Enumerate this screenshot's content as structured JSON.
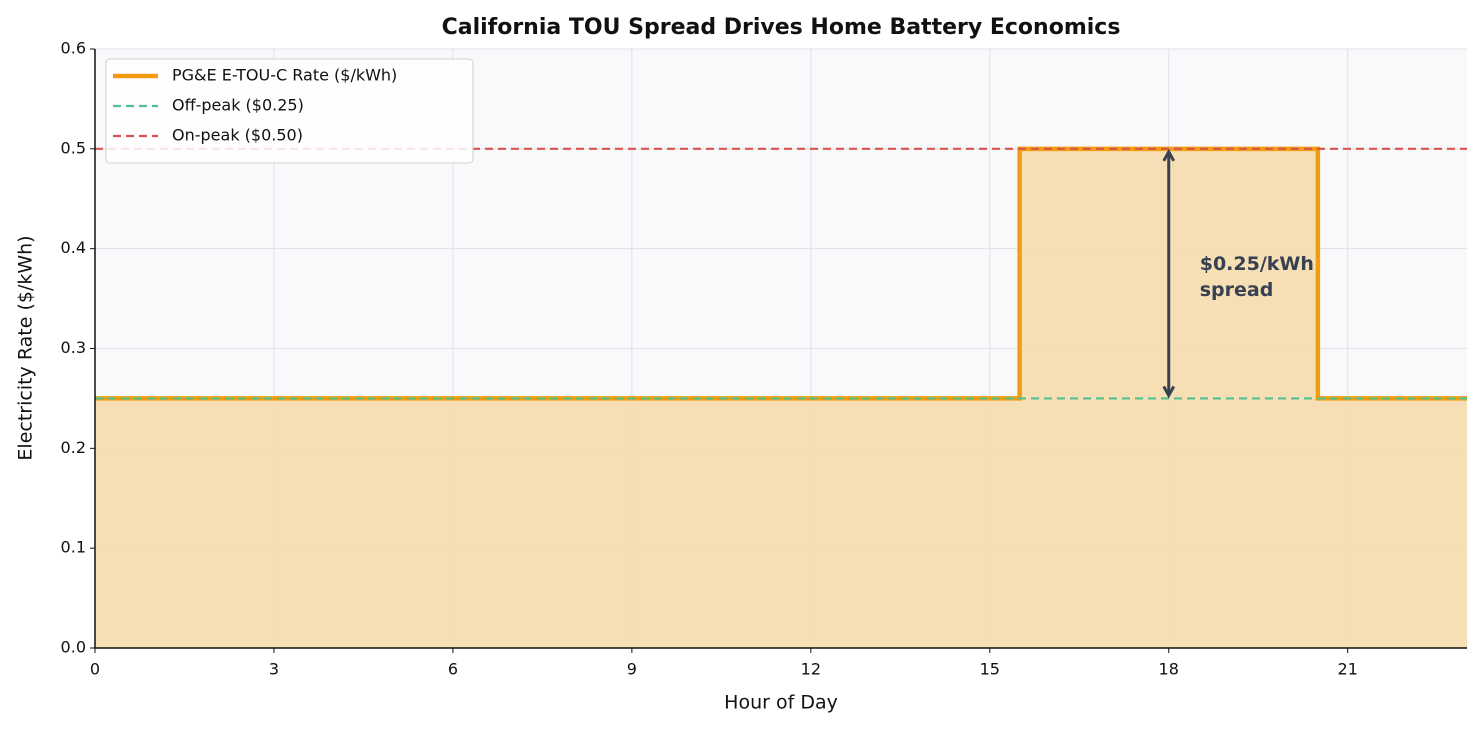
{
  "chart_data": {
    "type": "step",
    "title": "California TOU Spread Drives Home Battery Economics",
    "xlabel": "Hour of Day",
    "ylabel": "Electricity Rate ($/kWh)",
    "xlim": [
      0,
      23
    ],
    "ylim": [
      0,
      0.6
    ],
    "xticks": [
      0,
      3,
      6,
      9,
      12,
      15,
      18,
      21
    ],
    "yticks": [
      {
        "value": 0,
        "label": "0.0"
      },
      0.1,
      0.2,
      0.3,
      0.4,
      0.5,
      0.6
    ],
    "grid": true,
    "legend": "upper left",
    "series": [
      {
        "name": "PG&E E-TOU-C Rate ($/kWh)",
        "color": "#f39c12",
        "fill": "#f5ddb0",
        "x": [
          0,
          15.5,
          15.5,
          20.5,
          20.5,
          23
        ],
        "values": [
          0.25,
          0.25,
          0.5,
          0.5,
          0.25,
          0.25
        ]
      }
    ],
    "hlines": [
      {
        "name": "Off-peak ($0.25)",
        "color": "#52c08f",
        "value": 0.25
      },
      {
        "name": "On-peak ($0.50)",
        "color": "#d9534f",
        "value": 0.5
      }
    ],
    "annotation": {
      "lines": [
        "$0.25/kWh",
        "spread"
      ],
      "x": 18,
      "y_from": 0.25,
      "y_to": 0.5,
      "color": "#374151"
    }
  }
}
